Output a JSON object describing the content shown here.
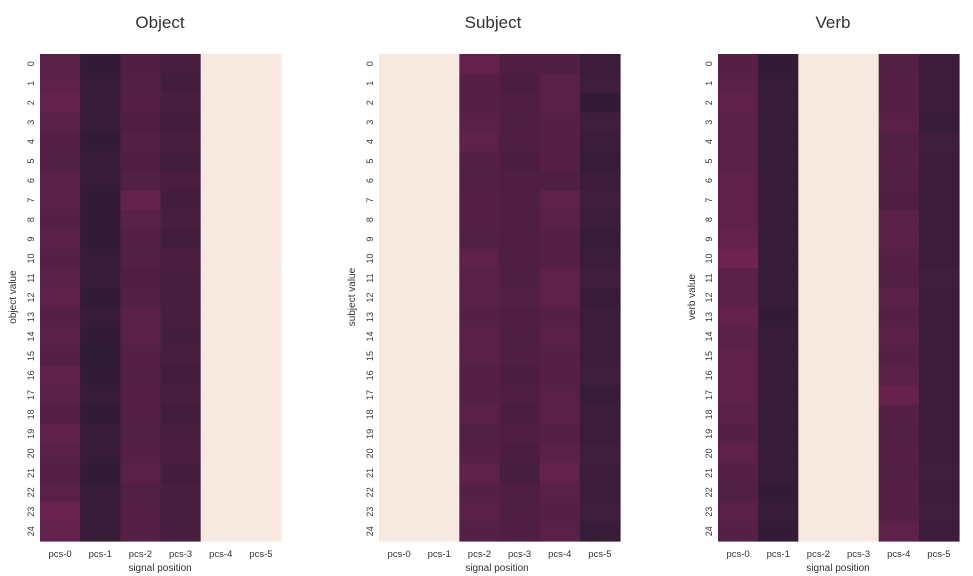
{
  "colors": {
    "background": "#ffffff",
    "low": "#2b1a33",
    "high": "#7a2556",
    "masked": "#f7e9df",
    "text": "#333333"
  },
  "chart_data": [
    {
      "type": "heatmap",
      "title": "Object",
      "xlabel": "signal position",
      "ylabel": "object value",
      "x": [
        "pcs-0",
        "pcs-1",
        "pcs-2",
        "pcs-3",
        "pcs-4",
        "pcs-5"
      ],
      "y": [
        "0",
        "1",
        "2",
        "3",
        "4",
        "5",
        "6",
        "7",
        "8",
        "9",
        "10",
        "11",
        "12",
        "13",
        "14",
        "15",
        "16",
        "17",
        "18",
        "19",
        "20",
        "21",
        "22",
        "23",
        "24"
      ],
      "masked_columns": [
        "pcs-4",
        "pcs-5"
      ],
      "values": [
        [
          0.6,
          0.1,
          0.45,
          0.35,
          null,
          null
        ],
        [
          0.65,
          0.15,
          0.5,
          0.3,
          null,
          null
        ],
        [
          0.7,
          0.15,
          0.55,
          0.35,
          null,
          null
        ],
        [
          0.6,
          0.15,
          0.45,
          0.3,
          null,
          null
        ],
        [
          0.55,
          0.1,
          0.5,
          0.35,
          null,
          null
        ],
        [
          0.5,
          0.15,
          0.45,
          0.3,
          null,
          null
        ],
        [
          0.6,
          0.15,
          0.5,
          0.4,
          null,
          null
        ],
        [
          0.6,
          0.1,
          0.7,
          0.3,
          null,
          null
        ],
        [
          0.55,
          0.1,
          0.6,
          0.35,
          null,
          null
        ],
        [
          0.6,
          0.1,
          0.55,
          0.3,
          null,
          null
        ],
        [
          0.55,
          0.15,
          0.5,
          0.4,
          null,
          null
        ],
        [
          0.6,
          0.15,
          0.45,
          0.35,
          null,
          null
        ],
        [
          0.65,
          0.1,
          0.5,
          0.35,
          null,
          null
        ],
        [
          0.55,
          0.15,
          0.6,
          0.35,
          null,
          null
        ],
        [
          0.6,
          0.1,
          0.6,
          0.3,
          null,
          null
        ],
        [
          0.55,
          0.05,
          0.55,
          0.35,
          null,
          null
        ],
        [
          0.65,
          0.1,
          0.5,
          0.3,
          null,
          null
        ],
        [
          0.6,
          0.15,
          0.55,
          0.35,
          null,
          null
        ],
        [
          0.55,
          0.1,
          0.55,
          0.3,
          null,
          null
        ],
        [
          0.65,
          0.15,
          0.5,
          0.35,
          null,
          null
        ],
        [
          0.6,
          0.15,
          0.55,
          0.4,
          null,
          null
        ],
        [
          0.55,
          0.1,
          0.6,
          0.3,
          null,
          null
        ],
        [
          0.6,
          0.15,
          0.5,
          0.35,
          null,
          null
        ],
        [
          0.8,
          0.15,
          0.55,
          0.35,
          null,
          null
        ],
        [
          0.7,
          0.15,
          0.55,
          0.35,
          null,
          null
        ]
      ]
    },
    {
      "type": "heatmap",
      "title": "Subject",
      "xlabel": "signal position",
      "ylabel": "subject value",
      "x": [
        "pcs-0",
        "pcs-1",
        "pcs-2",
        "pcs-3",
        "pcs-4",
        "pcs-5"
      ],
      "y": [
        "0",
        "1",
        "2",
        "3",
        "4",
        "5",
        "6",
        "7",
        "8",
        "9",
        "10",
        "11",
        "12",
        "13",
        "14",
        "15",
        "16",
        "17",
        "18",
        "19",
        "20",
        "21",
        "22",
        "23",
        "24"
      ],
      "masked_columns": [
        "pcs-0",
        "pcs-1"
      ],
      "values": [
        [
          null,
          null,
          0.7,
          0.45,
          0.45,
          0.2
        ],
        [
          null,
          null,
          0.55,
          0.4,
          0.6,
          0.25
        ],
        [
          null,
          null,
          0.55,
          0.45,
          0.6,
          0.1
        ],
        [
          null,
          null,
          0.6,
          0.45,
          0.55,
          0.25
        ],
        [
          null,
          null,
          0.65,
          0.45,
          0.55,
          0.2
        ],
        [
          null,
          null,
          0.55,
          0.4,
          0.55,
          0.15
        ],
        [
          null,
          null,
          0.5,
          0.45,
          0.45,
          0.2
        ],
        [
          null,
          null,
          0.55,
          0.45,
          0.65,
          0.25
        ],
        [
          null,
          null,
          0.55,
          0.45,
          0.6,
          0.2
        ],
        [
          null,
          null,
          0.5,
          0.45,
          0.55,
          0.15
        ],
        [
          null,
          null,
          0.65,
          0.45,
          0.55,
          0.2
        ],
        [
          null,
          null,
          0.6,
          0.45,
          0.65,
          0.25
        ],
        [
          null,
          null,
          0.6,
          0.5,
          0.65,
          0.15
        ],
        [
          null,
          null,
          0.55,
          0.45,
          0.55,
          0.2
        ],
        [
          null,
          null,
          0.6,
          0.45,
          0.6,
          0.2
        ],
        [
          null,
          null,
          0.6,
          0.45,
          0.55,
          0.2
        ],
        [
          null,
          null,
          0.55,
          0.4,
          0.55,
          0.25
        ],
        [
          null,
          null,
          0.55,
          0.45,
          0.6,
          0.15
        ],
        [
          null,
          null,
          0.6,
          0.4,
          0.6,
          0.2
        ],
        [
          null,
          null,
          0.5,
          0.45,
          0.55,
          0.2
        ],
        [
          null,
          null,
          0.55,
          0.4,
          0.6,
          0.25
        ],
        [
          null,
          null,
          0.65,
          0.35,
          0.7,
          0.2
        ],
        [
          null,
          null,
          0.55,
          0.45,
          0.6,
          0.2
        ],
        [
          null,
          null,
          0.6,
          0.45,
          0.55,
          0.25
        ],
        [
          null,
          null,
          0.55,
          0.45,
          0.6,
          0.15
        ]
      ]
    },
    {
      "type": "heatmap",
      "title": "Verb",
      "xlabel": "signal position",
      "ylabel": "verb value",
      "x": [
        "pcs-0",
        "pcs-1",
        "pcs-2",
        "pcs-3",
        "pcs-4",
        "pcs-5"
      ],
      "y": [
        "0",
        "1",
        "2",
        "3",
        "4",
        "5",
        "6",
        "7",
        "8",
        "9",
        "10",
        "11",
        "12",
        "13",
        "14",
        "15",
        "16",
        "17",
        "18",
        "19",
        "20",
        "21",
        "22",
        "23",
        "24"
      ],
      "masked_columns": [
        "pcs-2",
        "pcs-3"
      ],
      "values": [
        [
          0.55,
          0.1,
          null,
          null,
          0.5,
          0.2
        ],
        [
          0.6,
          0.15,
          null,
          null,
          0.55,
          0.2
        ],
        [
          0.65,
          0.15,
          null,
          null,
          0.55,
          0.2
        ],
        [
          0.6,
          0.15,
          null,
          null,
          0.6,
          0.15
        ],
        [
          0.6,
          0.15,
          null,
          null,
          0.5,
          0.25
        ],
        [
          0.6,
          0.15,
          null,
          null,
          0.55,
          0.2
        ],
        [
          0.65,
          0.15,
          null,
          null,
          0.5,
          0.2
        ],
        [
          0.65,
          0.15,
          null,
          null,
          0.45,
          0.2
        ],
        [
          0.65,
          0.15,
          null,
          null,
          0.6,
          0.2
        ],
        [
          0.7,
          0.15,
          null,
          null,
          0.6,
          0.2
        ],
        [
          0.85,
          0.15,
          null,
          null,
          0.55,
          0.2
        ],
        [
          0.6,
          0.15,
          null,
          null,
          0.5,
          0.25
        ],
        [
          0.6,
          0.15,
          null,
          null,
          0.6,
          0.2
        ],
        [
          0.7,
          0.1,
          null,
          null,
          0.55,
          0.2
        ],
        [
          0.6,
          0.15,
          null,
          null,
          0.6,
          0.2
        ],
        [
          0.65,
          0.15,
          null,
          null,
          0.55,
          0.2
        ],
        [
          0.65,
          0.15,
          null,
          null,
          0.6,
          0.2
        ],
        [
          0.65,
          0.15,
          null,
          null,
          0.75,
          0.2
        ],
        [
          0.6,
          0.15,
          null,
          null,
          0.55,
          0.2
        ],
        [
          0.55,
          0.15,
          null,
          null,
          0.5,
          0.2
        ],
        [
          0.65,
          0.15,
          null,
          null,
          0.55,
          0.2
        ],
        [
          0.55,
          0.15,
          null,
          null,
          0.5,
          0.25
        ],
        [
          0.5,
          0.1,
          null,
          null,
          0.55,
          0.2
        ],
        [
          0.6,
          0.15,
          null,
          null,
          0.55,
          0.25
        ],
        [
          0.55,
          0.1,
          null,
          null,
          0.65,
          0.2
        ]
      ]
    }
  ]
}
